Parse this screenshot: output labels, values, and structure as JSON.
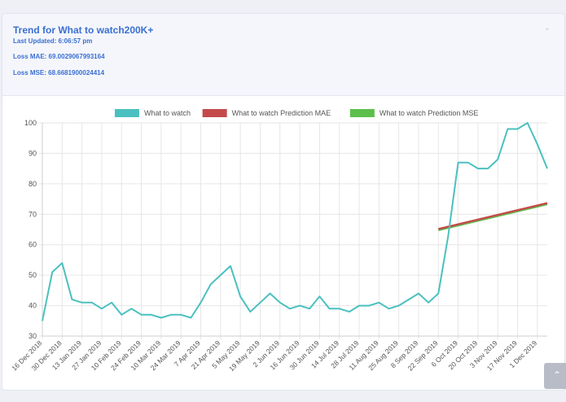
{
  "header": {
    "title": "Trend for What to watch200K+",
    "last_updated": "Last Updated: 6:06:57 pm",
    "loss_mae": "Loss MAE: 69.0029067993164",
    "loss_mse": "Loss MSE: 68.6681900024414",
    "collapse_icon": "chevron-down-icon"
  },
  "scroll_top_icon": "chevron-up-icon",
  "chart_data": {
    "type": "line",
    "ylim": [
      30,
      100
    ],
    "yticks": [
      30,
      40,
      50,
      60,
      70,
      80,
      90,
      100
    ],
    "grid": true,
    "legend_position": "top",
    "x_tick_labels": [
      "16 Dec 2018",
      "30 Dec 2018",
      "13 Jan 2019",
      "27 Jan 2019",
      "10 Feb 2019",
      "24 Feb 2019",
      "10 Mar 2019",
      "24 Mar 2019",
      "7 Apr 2019",
      "21 Apr 2019",
      "5 May 2019",
      "19 May 2019",
      "2 Jun 2019",
      "16 Jun 2019",
      "30 Jun 2019",
      "14 Jul 2019",
      "28 Jul 2019",
      "11 Aug 2019",
      "25 Aug 2019",
      "8 Sep 2019",
      "22 Sep 2019",
      "6 Oct 2019",
      "20 Oct 2019",
      "3 Nov 2019",
      "17 Nov 2019",
      "1 Dec 2019"
    ],
    "series": [
      {
        "name": "What to watch",
        "color": "#4bc0c0",
        "x_start": 0,
        "values": [
          35,
          51,
          54,
          42,
          41,
          41,
          39,
          41,
          37,
          39,
          37,
          37,
          36,
          37,
          37,
          36,
          41,
          47,
          50,
          53,
          43,
          38,
          41,
          44,
          41,
          39,
          40,
          39,
          43,
          39,
          39,
          38,
          40,
          40,
          41,
          39,
          40,
          42,
          44,
          41,
          44,
          63,
          87,
          87,
          85,
          85,
          88,
          98,
          98,
          100,
          93,
          85
        ]
      },
      {
        "name": "What to watch Prediction MAE",
        "color": "#c44a4a",
        "x_start": 40,
        "values": [
          65,
          73.5
        ]
      },
      {
        "name": "What to watch Prediction MSE",
        "color": "#5cbf4c",
        "x_start": 40,
        "values": [
          65,
          73.5
        ]
      }
    ]
  }
}
